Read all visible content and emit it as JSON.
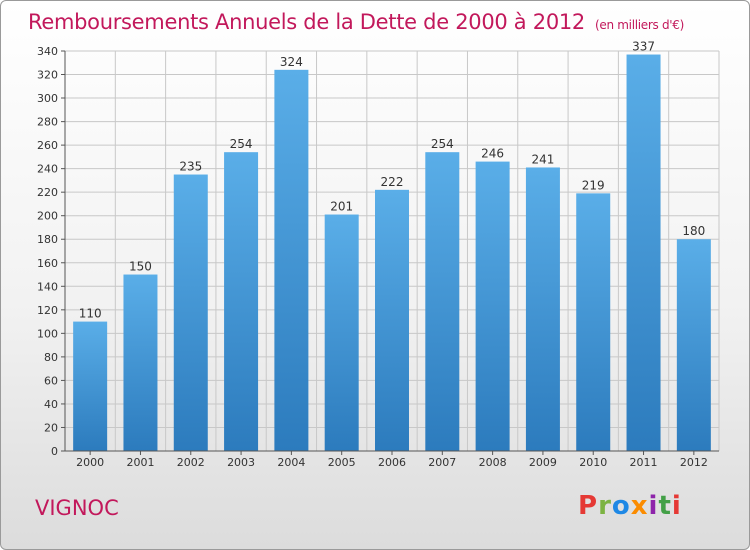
{
  "title": "Remboursements Annuels de la Dette de 2000 à 2012",
  "subtitle": "(en milliers d'€)",
  "commune": "VIGNOC",
  "logo": {
    "text": "Proxiti",
    "letters": [
      "P",
      "r",
      "o",
      "x",
      "i",
      "t",
      "i"
    ],
    "colors": [
      "#e53935",
      "#7cb342",
      "#1e88e5",
      "#fb8c00",
      "#8e24aa",
      "#43a047",
      "#e53935"
    ]
  },
  "colors": {
    "accent": "#c2185b",
    "bar_top": "#5aaee8",
    "bar_bottom": "#2c7bbd",
    "grid": "#c8c8c8"
  },
  "chart_data": {
    "type": "bar",
    "categories": [
      "2000",
      "2001",
      "2002",
      "2003",
      "2004",
      "2005",
      "2006",
      "2007",
      "2008",
      "2009",
      "2010",
      "2011",
      "2012"
    ],
    "values": [
      110,
      150,
      235,
      254,
      324,
      201,
      222,
      254,
      246,
      241,
      219,
      337,
      180
    ],
    "title": "Remboursements Annuels de la Dette de 2000 à 2012",
    "subtitle": "(en milliers d'€)",
    "xlabel": "",
    "ylabel": "",
    "ylim": [
      0,
      340
    ],
    "yticks": [
      0,
      20,
      40,
      60,
      80,
      100,
      120,
      140,
      160,
      180,
      200,
      220,
      240,
      260,
      280,
      300,
      320,
      340
    ],
    "grid": true,
    "data_labels": true
  }
}
